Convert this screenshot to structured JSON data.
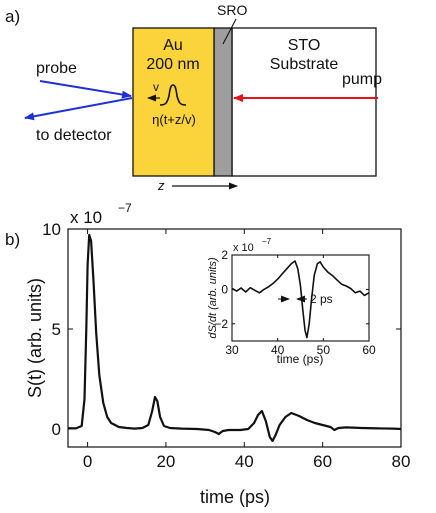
{
  "figure": {
    "panel_a_label": "a)",
    "panel_b_label": "b)",
    "diagram": {
      "au_label_line1": "Au",
      "au_label_line2": "200 nm",
      "sro_label": "SRO",
      "sto_label_line1": "STO",
      "sto_label_line2": "Substrate",
      "probe_label": "probe",
      "detector_label": "to detector",
      "pump_label": "pump",
      "velocity_label": "v",
      "pulse_label": "η(t+z/v)",
      "z_label": "z",
      "colors": {
        "au": "#FBD43B",
        "sro": "#9E9E9E",
        "probe": "#1F2FD8",
        "pump": "#E3141B"
      }
    }
  },
  "chart_data": [
    {
      "type": "line",
      "name": "main",
      "xlabel": "time (ps)",
      "ylabel": "S(t) (arb. units)",
      "exponent_label": "x 10",
      "exponent_power": "−7",
      "xlim": [
        -5,
        80
      ],
      "ylim": [
        -0.9,
        10
      ],
      "xticks": [
        0,
        20,
        40,
        60,
        80
      ],
      "yticks": [
        0,
        5,
        10
      ],
      "grid": false,
      "points": [
        [
          -5,
          0.04
        ],
        [
          -3,
          0.03
        ],
        [
          -1.5,
          0.15
        ],
        [
          -0.8,
          1.5
        ],
        [
          -0.3,
          5.2
        ],
        [
          0,
          8.2
        ],
        [
          0.4,
          9.7
        ],
        [
          0.9,
          9.4
        ],
        [
          1.5,
          7.4
        ],
        [
          2.2,
          4.8
        ],
        [
          3,
          2.7
        ],
        [
          4,
          1.3
        ],
        [
          5,
          0.6
        ],
        [
          6,
          0.3
        ],
        [
          8,
          0.1
        ],
        [
          10,
          0.05
        ],
        [
          12,
          0.02
        ],
        [
          14,
          0.05
        ],
        [
          15.5,
          0.2
        ],
        [
          16.5,
          0.9
        ],
        [
          17.2,
          1.6
        ],
        [
          17.8,
          1.4
        ],
        [
          18.5,
          0.6
        ],
        [
          19.5,
          0.15
        ],
        [
          21,
          0.05
        ],
        [
          24,
          0.02
        ],
        [
          28,
          0.0
        ],
        [
          31,
          -0.05
        ],
        [
          32.5,
          -0.15
        ],
        [
          33.5,
          -0.25
        ],
        [
          34.5,
          -0.1
        ],
        [
          36,
          -0.05
        ],
        [
          39,
          -0.05
        ],
        [
          41,
          0.0
        ],
        [
          42.5,
          0.3
        ],
        [
          43.5,
          0.7
        ],
        [
          44.5,
          0.9
        ],
        [
          45.5,
          0.4
        ],
        [
          46.5,
          -0.4
        ],
        [
          47.2,
          -0.6
        ],
        [
          48,
          -0.3
        ],
        [
          49,
          0.2
        ],
        [
          50.5,
          0.6
        ],
        [
          52,
          0.8
        ],
        [
          54,
          0.65
        ],
        [
          56,
          0.45
        ],
        [
          58,
          0.3
        ],
        [
          60,
          0.2
        ],
        [
          62,
          0.1
        ],
        [
          63,
          -0.05
        ],
        [
          64,
          0.05
        ],
        [
          66,
          0.08
        ],
        [
          70,
          0.05
        ],
        [
          74,
          0.03
        ],
        [
          78,
          0.02
        ],
        [
          80,
          0.0
        ]
      ]
    },
    {
      "type": "line",
      "name": "inset",
      "xlabel": "time (ps)",
      "ylabel": "dS/dt (arb. units)",
      "exponent_label": "x 10",
      "exponent_power": "−7",
      "annotation": "2 ps",
      "xlim": [
        30,
        60
      ],
      "ylim": [
        -3,
        2
      ],
      "xticks": [
        30,
        40,
        50,
        60
      ],
      "yticks": [
        -2,
        0,
        2
      ],
      "grid": false,
      "points": [
        [
          30,
          0.05
        ],
        [
          31,
          -0.1
        ],
        [
          32,
          0.08
        ],
        [
          33,
          -0.15
        ],
        [
          34,
          0.1
        ],
        [
          35,
          -0.05
        ],
        [
          36,
          -0.2
        ],
        [
          37,
          0.0
        ],
        [
          38,
          0.15
        ],
        [
          39,
          0.35
        ],
        [
          40,
          0.6
        ],
        [
          41,
          0.9
        ],
        [
          42,
          1.2
        ],
        [
          43,
          1.5
        ],
        [
          43.8,
          1.65
        ],
        [
          44.4,
          1.2
        ],
        [
          45,
          0.2
        ],
        [
          45.5,
          -1.2
        ],
        [
          46,
          -2.4
        ],
        [
          46.4,
          -2.8
        ],
        [
          46.9,
          -2.0
        ],
        [
          47.4,
          -0.6
        ],
        [
          48,
          0.8
        ],
        [
          48.7,
          1.5
        ],
        [
          49.3,
          1.6
        ],
        [
          50,
          1.3
        ],
        [
          51,
          1.0
        ],
        [
          52,
          0.8
        ],
        [
          53,
          0.55
        ],
        [
          54,
          0.3
        ],
        [
          55,
          0.2
        ],
        [
          56,
          0.05
        ],
        [
          57,
          -0.2
        ],
        [
          58,
          -0.1
        ],
        [
          59,
          -0.35
        ],
        [
          60,
          -0.2
        ]
      ]
    }
  ]
}
